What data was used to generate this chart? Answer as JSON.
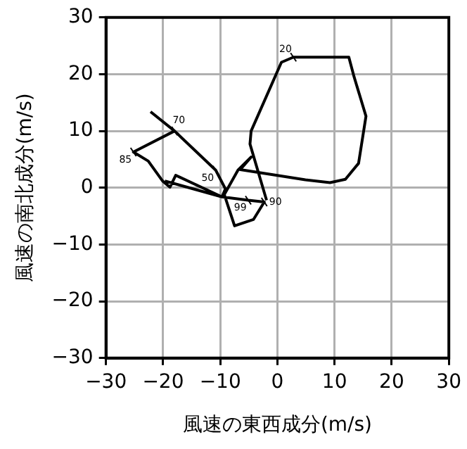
{
  "chart_data": {
    "type": "line",
    "xlabel": "風速の東西成分(m/s)",
    "ylabel": "風速の南北成分(m/s)",
    "series": [
      {
        "color": "#000000",
        "x": [
          -22.2,
          -18.0,
          -10.8,
          -9.1,
          -9.7,
          -17.8,
          -18.8,
          -20.1,
          -22.6,
          -25.2,
          -18.0,
          null,
          -19.7,
          -9.7,
          -5.1,
          -2.3,
          -4.2,
          -7.5,
          -9.3,
          -6.9,
          -4.6,
          -6.5,
          4.9,
          9.2,
          11.9,
          14.2,
          15.5,
          13.4,
          12.5,
          2.8,
          0.7,
          -4.6,
          -4.8,
          -1.9
        ],
        "values": [
          13.4,
          10.0,
          3.1,
          -0.2,
          -1.6,
          2.2,
          0.1,
          1.2,
          4.7,
          6.3,
          10.0,
          null,
          1.2,
          -1.6,
          -2.2,
          -2.5,
          -5.6,
          -6.7,
          -1.2,
          3.1,
          5.4,
          3.2,
          1.4,
          0.9,
          1.5,
          4.3,
          12.6,
          19.6,
          23.0,
          23.0,
          22.1,
          10.0,
          7.7,
          -2.2
        ]
      }
    ],
    "xlim": [
      -30,
      30
    ],
    "ylim": [
      -30,
      30
    ],
    "xticks": [
      -30,
      -20,
      -10,
      0,
      10,
      20,
      30
    ],
    "yticks": [
      -30,
      -20,
      -10,
      0,
      10,
      20,
      30
    ],
    "grid": true,
    "legend": false,
    "marker": "none",
    "line_style": "solid",
    "annotations": [
      {
        "text": "20",
        "x": 2.8,
        "y": 23.0
      },
      {
        "text": "70",
        "x": -18.0,
        "y": 10.0
      },
      {
        "text": "85",
        "x": -25.2,
        "y": 6.3
      },
      {
        "text": "50",
        "x": -10.8,
        "y": 3.1
      },
      {
        "text": "99",
        "x": -5.1,
        "y": -2.2
      },
      {
        "text": "90",
        "x": -2.3,
        "y": -2.5
      }
    ]
  }
}
